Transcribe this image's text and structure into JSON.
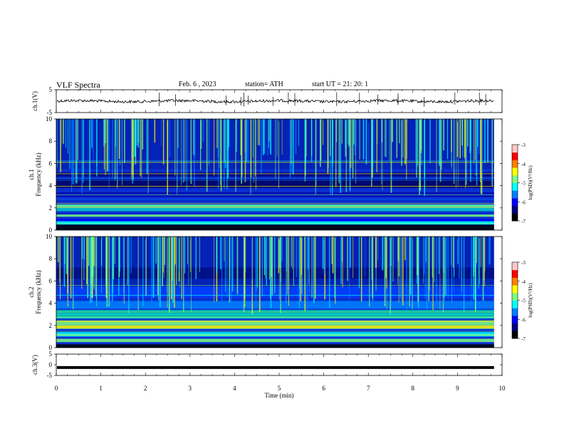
{
  "header": {
    "title": "VLF  Spectra",
    "date": "Feb. 6  , 2023",
    "station": "station= ATH",
    "start": "start  UT  =   21: 20: 1"
  },
  "colors": {
    "spectrogram_scale": [
      "#000000",
      "#00007f",
      "#0000ff",
      "#007fff",
      "#00ffff",
      "#7fff7f",
      "#ffff00",
      "#ff7f00",
      "#ff0000",
      "#ffc8c8"
    ]
  },
  "chart_data": [
    {
      "type": "line",
      "panel": "ch1-waveform",
      "ylabel": "ch.1(V)",
      "ylim": [
        -5,
        5
      ],
      "yticks": [
        "5",
        "-5"
      ],
      "series": [
        {
          "values_baseline": 0.0
        }
      ]
    },
    {
      "type": "heatmap",
      "panel": "ch1-spectrogram",
      "ylabel": "ch.1\nFrequency  (kHz)",
      "ylim": [
        0,
        10
      ],
      "yticks": [
        "0",
        "2",
        "4",
        "6",
        "8",
        "10"
      ],
      "colorbar": {
        "label": "log(PSD)(V²/Hz)",
        "ticks": [
          "-3",
          "-4",
          "-5",
          "-6",
          "-7"
        ],
        "range": [
          -7,
          -3
        ]
      }
    },
    {
      "type": "heatmap",
      "panel": "ch2-spectrogram",
      "ylabel": "ch.2\nFrequency  (kHz)",
      "ylim": [
        0,
        10
      ],
      "yticks": [
        "0",
        "2",
        "4",
        "6",
        "8",
        "10"
      ],
      "colorbar": {
        "label": "log(PSD)(V²/Hz)",
        "ticks": [
          "-3",
          "-4",
          "-5",
          "-6",
          "-7"
        ],
        "range": [
          -7,
          -3
        ]
      }
    },
    {
      "type": "line",
      "panel": "ch3-waveform",
      "ylabel": "ch.3(V)",
      "ylim": [
        -5,
        5
      ],
      "yticks": [
        "5",
        "0",
        "-5"
      ],
      "series": [
        {
          "values_baseline": -1.3
        }
      ]
    }
  ],
  "x_axis": {
    "label": "Time  (min)",
    "ticks": [
      "0",
      "1",
      "2",
      "3",
      "4",
      "5",
      "6",
      "7",
      "8",
      "9",
      "10"
    ],
    "range": [
      0,
      10
    ],
    "data_end": 9.82
  }
}
